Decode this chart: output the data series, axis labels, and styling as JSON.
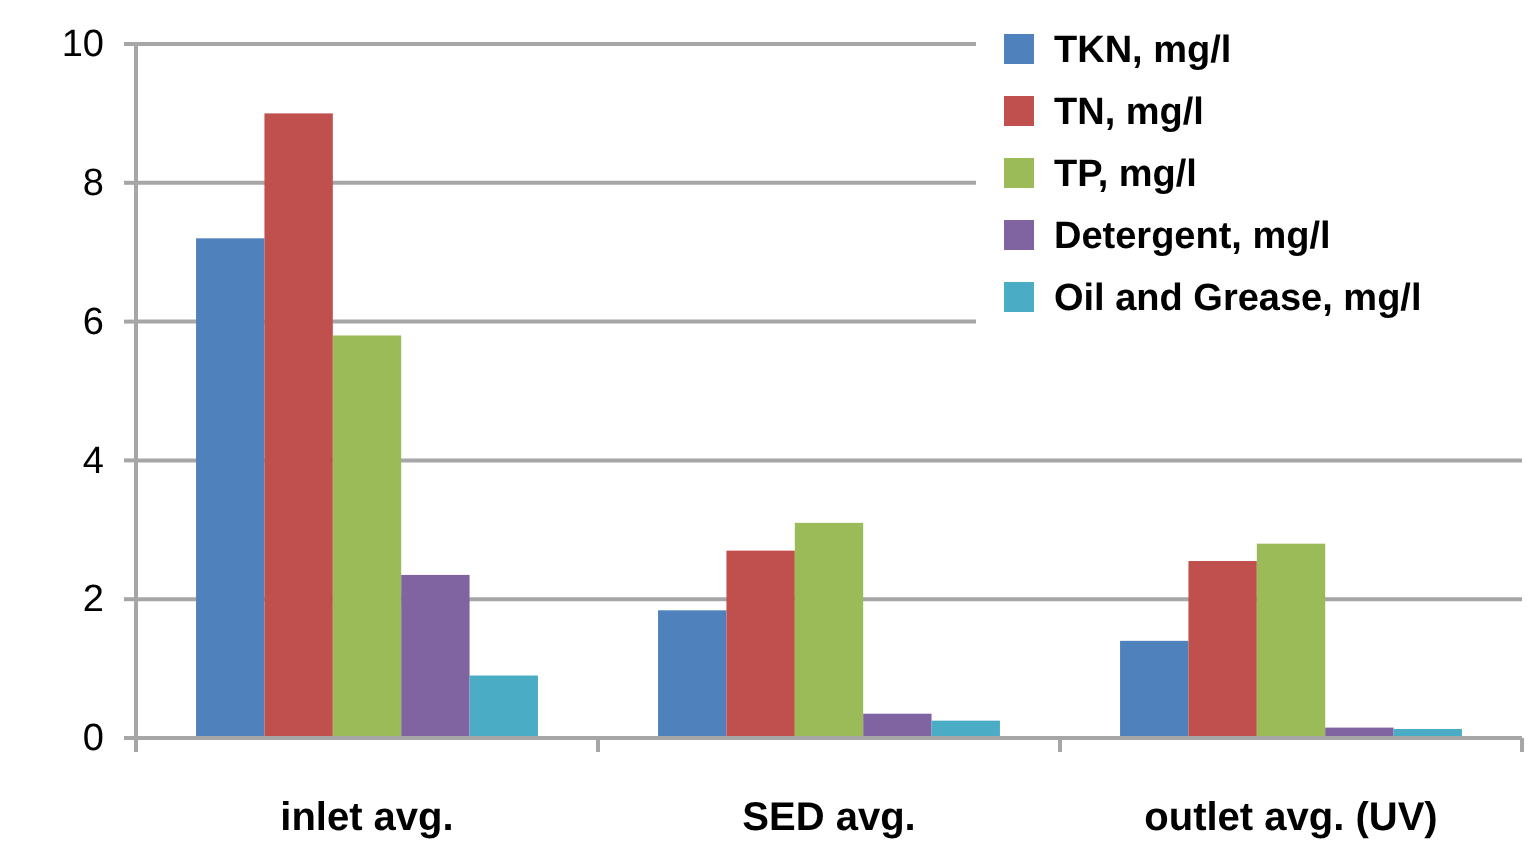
{
  "chart_data": {
    "type": "bar",
    "categories": [
      "inlet avg.",
      "SED avg.",
      "outlet avg. (UV)"
    ],
    "series": [
      {
        "name": "TKN, mg/l",
        "color": "#4f81bd",
        "values": [
          7.2,
          1.84,
          1.4
        ]
      },
      {
        "name": "TN, mg/l",
        "color": "#c0504d",
        "values": [
          9.0,
          2.7,
          2.55
        ]
      },
      {
        "name": "TP, mg/l",
        "color": "#9bbb59",
        "values": [
          5.8,
          3.1,
          2.8
        ]
      },
      {
        "name": "Detergent, mg/l",
        "color": "#8064a2",
        "values": [
          2.35,
          0.35,
          0.15
        ]
      },
      {
        "name": "Oil and Grease, mg/l",
        "color": "#4bacc6",
        "values": [
          0.9,
          0.25,
          0.13
        ]
      }
    ],
    "ylim": [
      0,
      10
    ],
    "yticks": [
      0,
      2,
      4,
      6,
      8,
      10
    ],
    "grid": "y",
    "legend": "top right"
  }
}
